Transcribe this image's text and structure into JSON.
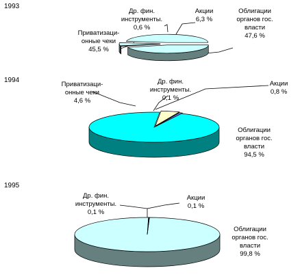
{
  "chart_data": [
    {
      "type": "pie",
      "title": "1993",
      "categories": [
        "Облигации органов гос. власти",
        "Акции",
        "Др. фин. инструменты.",
        "Приватизаци-онные чеки"
      ],
      "values": [
        47.6,
        6.3,
        0.6,
        45.5
      ],
      "labels": [
        {
          "lines": [
            "Облигации",
            "органов гос.",
            "власти",
            "47,6 %"
          ]
        },
        {
          "lines": [
            "Акции",
            "6,3 %"
          ]
        },
        {
          "lines": [
            "Др. фин.",
            "инструменты.",
            "0,6 %"
          ]
        },
        {
          "lines": [
            "Приватизаци-",
            "онные чеки",
            "45,5 %"
          ]
        }
      ],
      "colors": [
        "#ccffff",
        "#ccffff",
        "#ccffff",
        "#ccffff"
      ]
    },
    {
      "type": "pie",
      "title": "1994",
      "categories": [
        "Облигации органов гос. власти",
        "Акции",
        "Др. фин. инструменты.",
        "Приватизаци-онные чеки"
      ],
      "values": [
        94.5,
        0.8,
        0.1,
        4.6
      ],
      "labels": [
        {
          "lines": [
            "Облигации",
            "органов гос.",
            "власти",
            "94,5 %"
          ]
        },
        {
          "lines": [
            "Акции",
            "0,8 %"
          ]
        },
        {
          "lines": [
            "Др. фин.",
            "инструменты.",
            "0,1 %"
          ]
        },
        {
          "lines": [
            "Приватизаци-",
            "онные чеки",
            "4,6 %"
          ]
        }
      ],
      "colors": [
        "#00ffff",
        "#8080ff",
        "#ffffff",
        "#ffffcc"
      ]
    },
    {
      "type": "pie",
      "title": "1995",
      "categories": [
        "Облигации органов гос. власти",
        "Акции",
        "Др. фин. инструменты."
      ],
      "values": [
        99.8,
        0.1,
        0.1
      ],
      "labels": [
        {
          "lines": [
            "Облигации",
            "органов гос.",
            "власти",
            "99,8 %"
          ]
        },
        {
          "lines": [
            "Акции",
            "0,1 %"
          ]
        },
        {
          "lines": [
            "Др. фин.",
            "инструменты.",
            "0,1 %"
          ]
        }
      ],
      "colors": [
        "#ccffff",
        "#ccffff",
        "#ccffff"
      ]
    }
  ]
}
